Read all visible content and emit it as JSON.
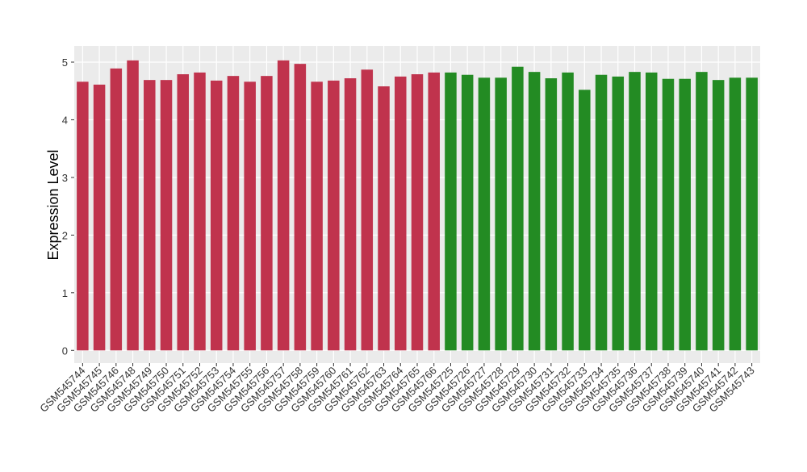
{
  "chart_data": {
    "type": "bar",
    "y_label": "Expression Level",
    "categories": [
      "GSM545744",
      "GSM545745",
      "GSM545746",
      "GSM545748",
      "GSM545749",
      "GSM545750",
      "GSM545751",
      "GSM545752",
      "GSM545753",
      "GSM545754",
      "GSM545755",
      "GSM545756",
      "GSM545757",
      "GSM545758",
      "GSM545759",
      "GSM545760",
      "GSM545761",
      "GSM545762",
      "GSM545763",
      "GSM545764",
      "GSM545765",
      "GSM545766",
      "GSM545725",
      "GSM545726",
      "GSM545727",
      "GSM545728",
      "GSM545729",
      "GSM545730",
      "GSM545731",
      "GSM545732",
      "GSM545733",
      "GSM545734",
      "GSM545735",
      "GSM545736",
      "GSM545737",
      "GSM545738",
      "GSM545739",
      "GSM545740",
      "GSM545741",
      "GSM545742",
      "GSM545743"
    ],
    "values": [
      4.66,
      4.61,
      4.89,
      5.03,
      4.69,
      4.69,
      4.79,
      4.82,
      4.68,
      4.76,
      4.66,
      4.76,
      5.03,
      4.97,
      4.66,
      4.68,
      4.72,
      4.87,
      4.58,
      4.75,
      4.79,
      4.82,
      4.82,
      4.78,
      4.73,
      4.73,
      4.92,
      4.83,
      4.72,
      4.82,
      4.52,
      4.78,
      4.75,
      4.83,
      4.82,
      4.71,
      4.71,
      4.83,
      4.69,
      4.73,
      4.73
    ],
    "colors": [
      "#c0334d",
      "#c0334d",
      "#c0334d",
      "#c0334d",
      "#c0334d",
      "#c0334d",
      "#c0334d",
      "#c0334d",
      "#c0334d",
      "#c0334d",
      "#c0334d",
      "#c0334d",
      "#c0334d",
      "#c0334d",
      "#c0334d",
      "#c0334d",
      "#c0334d",
      "#c0334d",
      "#c0334d",
      "#c0334d",
      "#c0334d",
      "#c0334d",
      "#238b23",
      "#238b23",
      "#238b23",
      "#238b23",
      "#238b23",
      "#238b23",
      "#238b23",
      "#238b23",
      "#238b23",
      "#238b23",
      "#238b23",
      "#238b23",
      "#238b23",
      "#238b23",
      "#238b23",
      "#238b23",
      "#238b23",
      "#238b23",
      "#238b23"
    ],
    "ylim": [
      -0.22,
      5.28
    ],
    "yticks": [
      0,
      1,
      2,
      3,
      4,
      5
    ],
    "grid": true
  }
}
